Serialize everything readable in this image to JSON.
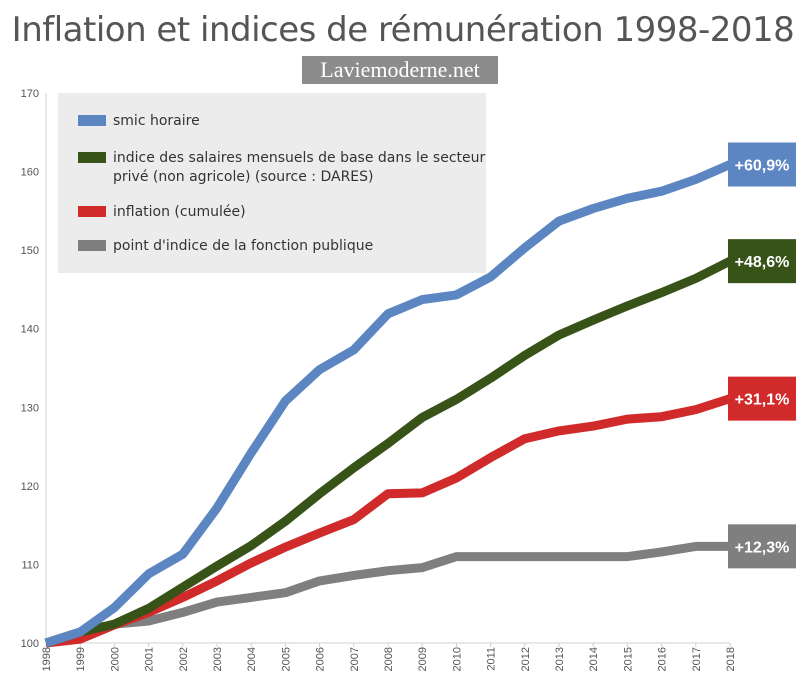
{
  "title": "Inflation et indices de rémunération 1998-2018",
  "watermark": "Laviemoderne.net",
  "chart_data": {
    "type": "line",
    "title": "Inflation et indices de rémunération 1998-2018",
    "xlabel": "",
    "ylabel": "",
    "ylim": [
      100,
      170
    ],
    "yticks": [
      100,
      110,
      120,
      130,
      140,
      150,
      160,
      170
    ],
    "grid": false,
    "legend_position": "top-left",
    "x": [
      "1998",
      "1999",
      "2000",
      "2001",
      "2002",
      "2003",
      "2004",
      "2005",
      "2006",
      "2007",
      "2008",
      "2009",
      "2010",
      "2011",
      "2012",
      "2013",
      "2014",
      "2015",
      "2016",
      "2017",
      "2018"
    ],
    "series": [
      {
        "name": "smic horaire",
        "color": "#5b86c2",
        "values": [
          100,
          101.4,
          104.5,
          108.8,
          111.3,
          117.2,
          124.2,
          130.8,
          134.8,
          137.3,
          141.9,
          143.7,
          144.3,
          146.6,
          150.3,
          153.7,
          155.3,
          156.6,
          157.5,
          159.0,
          160.9
        ],
        "end_label": "+60,9%"
      },
      {
        "name": "indice des salaires mensuels de base dans le secteur privé (non agricole) (source : DARES)",
        "legend_lines": [
          "indice des salaires mensuels de base dans le secteur",
          "privé (non agricole) (source : DARES)"
        ],
        "color": "#375317",
        "values": [
          100,
          101.4,
          102.4,
          104.4,
          107.1,
          109.8,
          112.4,
          115.5,
          119.0,
          122.3,
          125.4,
          128.7,
          131.0,
          133.7,
          136.6,
          139.2,
          141.1,
          142.9,
          144.6,
          146.4,
          148.6
        ],
        "end_label": "+48,6%"
      },
      {
        "name": "inflation (cumulée)",
        "color": "#d12a2a",
        "values": [
          100,
          100.5,
          102.3,
          103.9,
          105.8,
          107.9,
          110.2,
          112.2,
          114.0,
          115.7,
          119.0,
          119.1,
          121.0,
          123.6,
          126.0,
          127.0,
          127.6,
          128.5,
          128.8,
          129.7,
          131.1
        ],
        "end_label": "+31,1%"
      },
      {
        "name": "point d'indice de la fonction publique",
        "color": "#7f7f7f",
        "values": [
          100,
          101.3,
          102.4,
          102.8,
          103.9,
          105.2,
          105.8,
          106.4,
          107.9,
          108.6,
          109.2,
          109.6,
          111.0,
          111.0,
          111.0,
          111.0,
          111.0,
          111.0,
          111.6,
          112.3,
          112.3
        ],
        "end_label": "+12,3%"
      }
    ]
  }
}
